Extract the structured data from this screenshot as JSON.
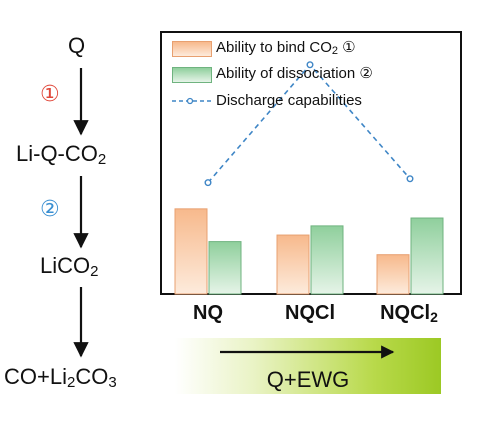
{
  "pathway": {
    "step0": {
      "text": "Q"
    },
    "marker1": {
      "text": "①",
      "color": "#e0473a"
    },
    "step1": {
      "pre": "Li-Q-CO",
      "sub": "2",
      "post": ""
    },
    "marker2": {
      "text": "②",
      "color": "#3a8fd1"
    },
    "step2": {
      "pre": "LiCO",
      "sub": "2",
      "post": ""
    },
    "step3": {
      "pre": "CO+Li",
      "sub": "2",
      "mid": "CO",
      "sub2": "3"
    }
  },
  "gradient_label": "Q+EWG",
  "legend": {
    "bind": {
      "pre": "Ability to bind CO",
      "sub": "2",
      "post": " ①"
    },
    "dissociation": {
      "text": "Ability of dissociation ②"
    },
    "discharge": {
      "text": "Discharge capabilities"
    }
  },
  "colors": {
    "bind_top": "#f7b98c",
    "bind_bottom": "#fdebdc",
    "bind_stroke": "#e8a070",
    "diss_top": "#8fcf9c",
    "diss_bottom": "#e6f4e8",
    "diss_stroke": "#6fb37f",
    "discharge_line": "#3f86c6",
    "arrow": "#111111"
  },
  "chart_data": {
    "type": "bar",
    "categories": [
      "NQ",
      "NQCl",
      "NQCl₂"
    ],
    "category_labels": [
      {
        "pre": "NQ",
        "sub": ""
      },
      {
        "pre": "NQCl",
        "sub": ""
      },
      {
        "pre": "NQCl",
        "sub": "2"
      }
    ],
    "series": [
      {
        "name": "Ability to bind CO₂ ①",
        "kind": "bar",
        "values": [
          6.5,
          4.5,
          3.0
        ]
      },
      {
        "name": "Ability of dissociation ②",
        "kind": "bar",
        "values": [
          4.0,
          5.2,
          5.8
        ]
      },
      {
        "name": "Discharge capabilities",
        "kind": "line",
        "values": [
          8.5,
          17.5,
          8.8
        ]
      }
    ],
    "ylim": [
      0,
      20
    ],
    "grid": false,
    "legend_position": "top"
  }
}
